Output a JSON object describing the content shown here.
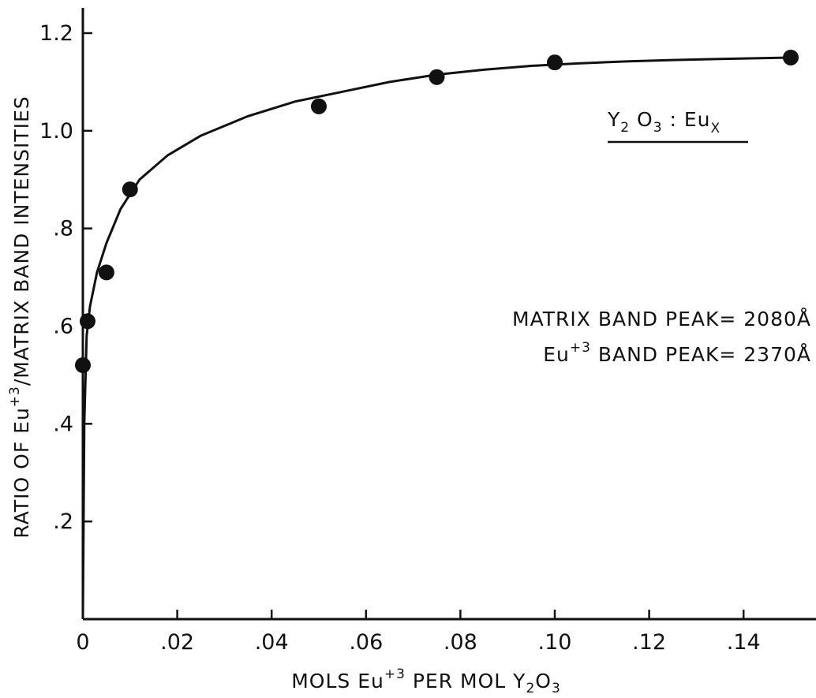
{
  "chart_data": {
    "type": "scatter",
    "xlabel": {
      "prefix": "MOLS Eu",
      "sup": "+3",
      "middle": " PER MOL Y",
      "sub1": "2",
      "o": "O",
      "sub2": "3"
    },
    "ylabel": {
      "prefix": "RATIO OF Eu",
      "sup": "+3",
      "suffix": "/MATRIX BAND INTENSITIES"
    },
    "xlim": [
      0,
      0.15
    ],
    "ylim": [
      0,
      1.2
    ],
    "x_ticks": [
      {
        "value": 0,
        "label": "0"
      },
      {
        "value": 0.02,
        "label": ".02"
      },
      {
        "value": 0.04,
        "label": ".04"
      },
      {
        "value": 0.06,
        "label": ".06"
      },
      {
        "value": 0.08,
        "label": ".08"
      },
      {
        "value": 0.1,
        "label": ".10"
      },
      {
        "value": 0.12,
        "label": ".12"
      },
      {
        "value": 0.14,
        "label": ".14"
      }
    ],
    "y_ticks": [
      {
        "value": 0.2,
        "label": ".2"
      },
      {
        "value": 0.4,
        "label": ".4"
      },
      {
        "value": 0.6,
        "label": ".6"
      },
      {
        "value": 0.8,
        "label": ".8"
      },
      {
        "value": 1.0,
        "label": "1.0"
      },
      {
        "value": 1.2,
        "label": "1.2"
      }
    ],
    "grid": false,
    "legend": "none",
    "series": [
      {
        "points": [
          {
            "x": 0.0,
            "y": 0.52
          },
          {
            "x": 0.001,
            "y": 0.61
          },
          {
            "x": 0.005,
            "y": 0.71
          },
          {
            "x": 0.01,
            "y": 0.88
          },
          {
            "x": 0.05,
            "y": 1.05
          },
          {
            "x": 0.075,
            "y": 1.11
          },
          {
            "x": 0.1,
            "y": 1.14
          },
          {
            "x": 0.15,
            "y": 1.15
          }
        ]
      }
    ],
    "fit_curve": {
      "x": [
        0,
        0.0003,
        0.0008,
        0.0015,
        0.003,
        0.005,
        0.008,
        0.012,
        0.018,
        0.025,
        0.035,
        0.045,
        0.055,
        0.065,
        0.075,
        0.085,
        0.095,
        0.105,
        0.115,
        0.125,
        0.135,
        0.15
      ],
      "y": [
        0.0,
        0.4,
        0.58,
        0.64,
        0.71,
        0.77,
        0.84,
        0.9,
        0.95,
        0.99,
        1.03,
        1.06,
        1.08,
        1.1,
        1.115,
        1.125,
        1.133,
        1.138,
        1.142,
        1.145,
        1.147,
        1.15
      ]
    },
    "annotations": {
      "formula": {
        "y": "Y",
        "sub1": "2",
        "o": " O",
        "sub2": "3",
        "sep": " : Eu",
        "subx": "X"
      },
      "matrix_peak": "MATRIX  BAND  PEAK= 2080Å",
      "eu_peak_prefix": "Eu",
      "eu_peak_sup": "+3",
      "eu_peak_suffix": " BAND  PEAK= 2370Å"
    },
    "colors": {
      "ink": "#111111",
      "background": "#ffffff"
    }
  }
}
